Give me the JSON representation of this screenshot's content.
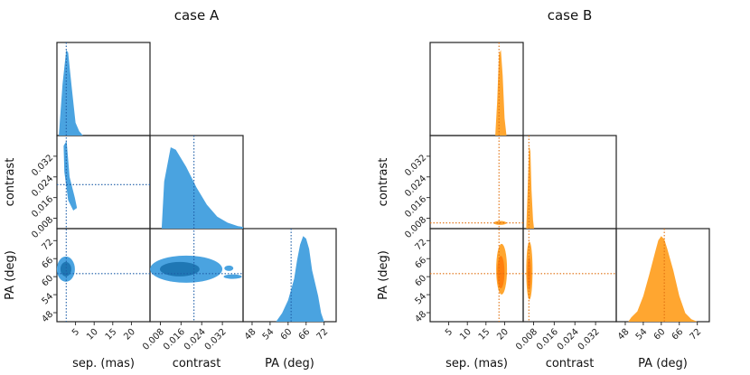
{
  "chart_data": [
    {
      "type": "corner",
      "title": "case A",
      "color": "#4aa3e0",
      "dark_color": "#1f77b4",
      "truth_color": "#1f5fa8",
      "parameters": [
        "sep. (mas)",
        "contrast",
        "PA (deg)"
      ],
      "ranges": {
        "sep": [
          0,
          25
        ],
        "contrast": [
          0.004,
          0.04
        ],
        "pa": [
          45,
          76
        ]
      },
      "ticks": {
        "sep": [
          "5",
          "10",
          "15",
          "20"
        ],
        "contrast": [
          "0.008",
          "0.016",
          "0.024",
          "0.032"
        ],
        "pa": [
          "48",
          "54",
          "60",
          "66",
          "72"
        ]
      },
      "truth": {
        "sep": 2.5,
        "contrast": 0.021,
        "pa": 61
      },
      "marginals": {
        "sep": {
          "x": [
            0.5,
            1.5,
            2.5,
            3.0,
            4.0,
            5.0,
            6.0,
            7.0
          ],
          "density": [
            0.0,
            0.6,
            1.0,
            0.97,
            0.55,
            0.15,
            0.05,
            0.0
          ]
        },
        "pa": {
          "x": [
            56,
            58,
            60,
            62,
            63,
            64,
            65,
            66,
            67,
            68,
            70,
            71,
            72
          ],
          "density": [
            0.0,
            0.1,
            0.25,
            0.5,
            0.72,
            0.9,
            1.0,
            0.97,
            0.85,
            0.6,
            0.3,
            0.1,
            0.0
          ]
        }
      },
      "axis_labels_shown": true
    },
    {
      "type": "corner",
      "title": "case B",
      "color": "#ffa630",
      "dark_color": "#ff7f0e",
      "truth_color": "#e07010",
      "parameters": [
        "sep. (mas)",
        "contrast",
        "PA (deg)"
      ],
      "ranges": {
        "sep": [
          0,
          25
        ],
        "contrast": [
          0.004,
          0.04
        ],
        "pa": [
          45,
          76
        ]
      },
      "ticks": {
        "sep": [
          "5",
          "10",
          "15",
          "20"
        ],
        "contrast": [
          "0.008",
          "0.016",
          "0.024",
          "0.032"
        ],
        "pa": [
          "48",
          "54",
          "60",
          "66",
          "72"
        ]
      },
      "truth": {
        "sep": 18.5,
        "contrast": 0.0062,
        "pa": 61
      },
      "marginals": {
        "sep": {
          "x": [
            17.5,
            18.0,
            18.5,
            19.0,
            19.5,
            20.0,
            20.5
          ],
          "density": [
            0.0,
            0.4,
            0.95,
            1.0,
            0.7,
            0.2,
            0.0
          ]
        },
        "pa": {
          "x": [
            49,
            50,
            52,
            54,
            56,
            58,
            59,
            60,
            61,
            62,
            64,
            66,
            68,
            70,
            72
          ],
          "density": [
            0.0,
            0.05,
            0.12,
            0.3,
            0.55,
            0.82,
            0.95,
            1.0,
            0.96,
            0.85,
            0.6,
            0.3,
            0.1,
            0.03,
            0.0
          ]
        }
      },
      "axis_labels_shown": true
    }
  ]
}
